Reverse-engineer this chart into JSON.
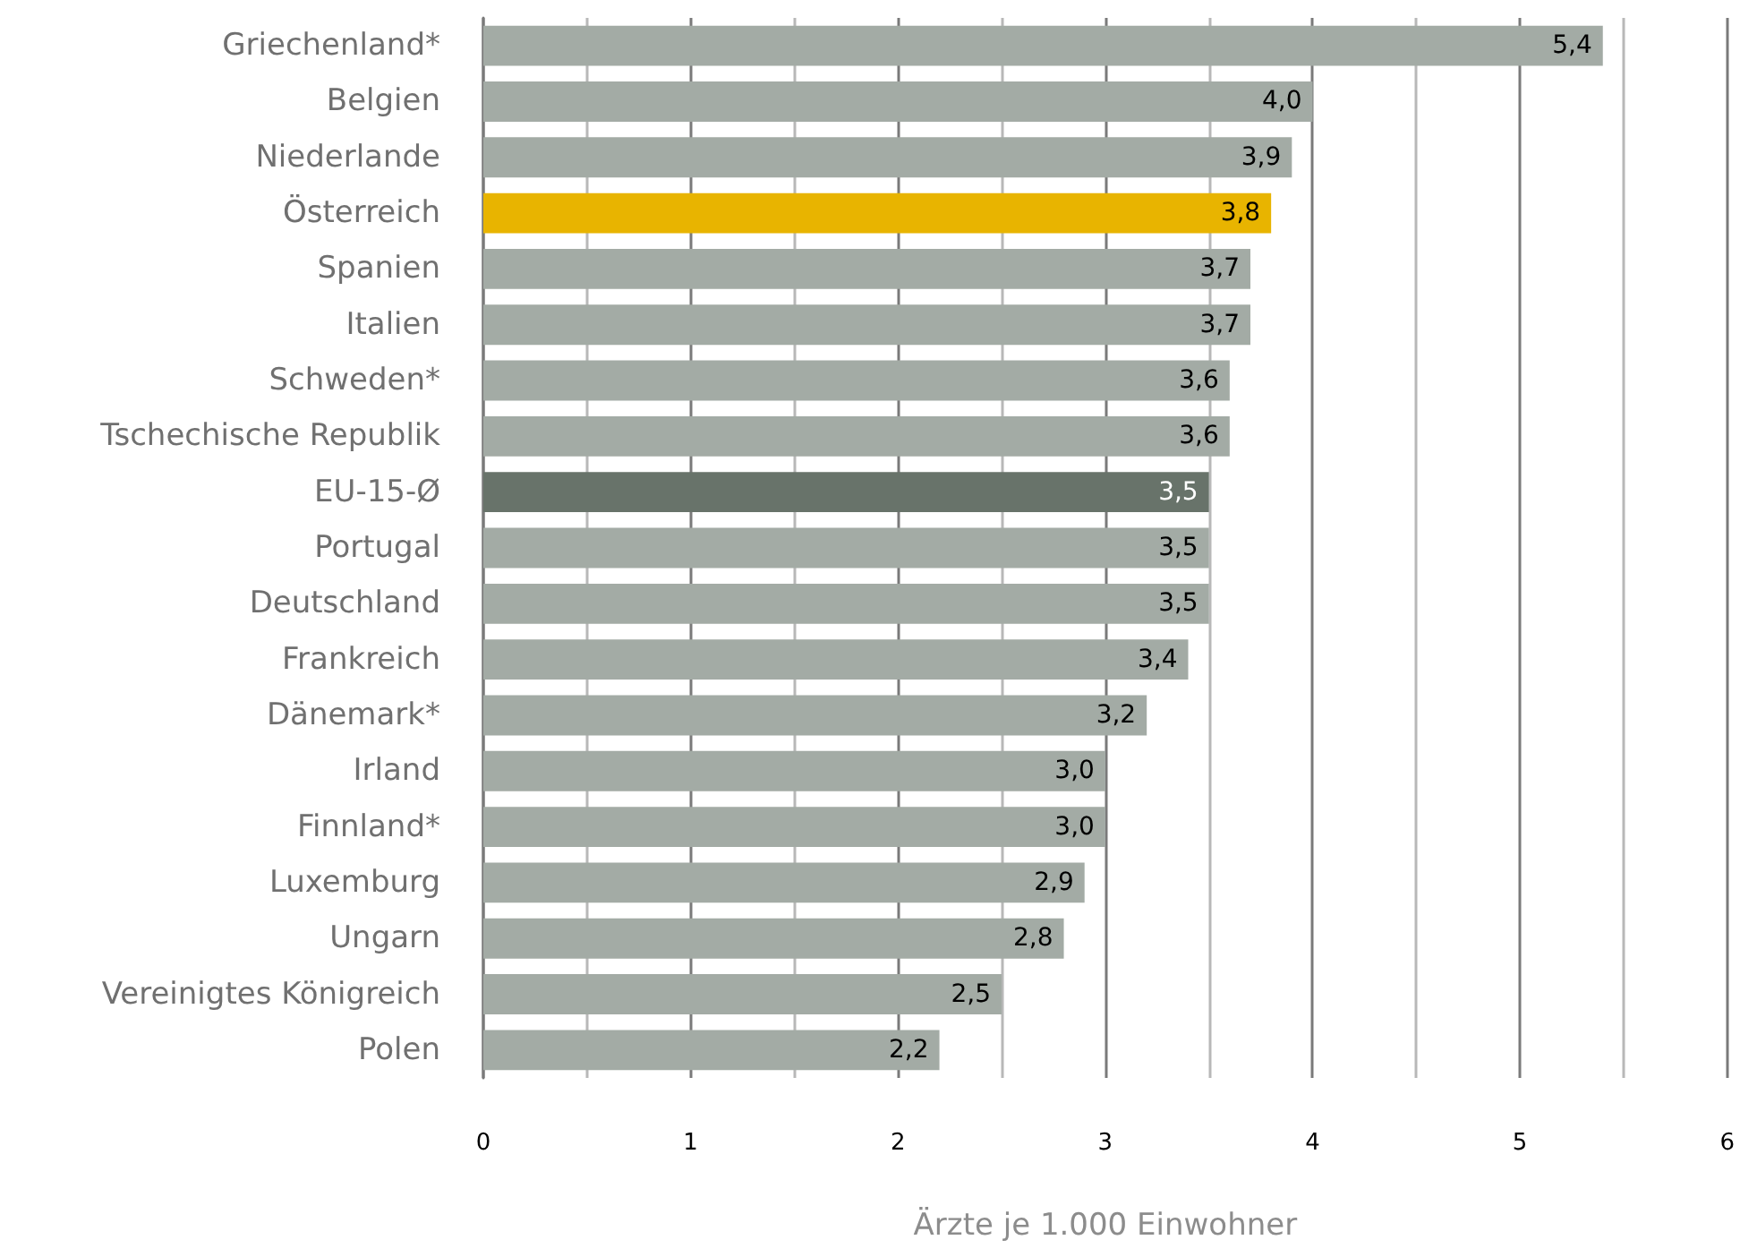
{
  "chart_data": {
    "type": "bar",
    "orientation": "horizontal",
    "xlabel": "Ärzte je 1.000 Einwohner",
    "categories": [
      "Griechenland*",
      "Belgien",
      "Niederlande",
      "Österreich",
      "Spanien",
      "Italien",
      "Schweden*",
      "Tschechische Republik",
      "EU-15-Ø",
      "Portugal",
      "Deutschland",
      "Frankreich",
      "Dänemark*",
      "Irland",
      "Finnland*",
      "Luxemburg",
      "Ungarn",
      "Vereinigtes Königreich",
      "Polen"
    ],
    "values": [
      5.4,
      4.0,
      3.9,
      3.8,
      3.7,
      3.7,
      3.6,
      3.6,
      3.5,
      3.5,
      3.5,
      3.4,
      3.2,
      3.0,
      3.0,
      2.9,
      2.8,
      2.5,
      2.2
    ],
    "value_labels": [
      "5,4",
      "4,0",
      "3,9",
      "3,8",
      "3,7",
      "3,7",
      "3,6",
      "3,6",
      "3,5",
      "3,5",
      "3,5",
      "3,4",
      "3,2",
      "3,0",
      "3,0",
      "2,9",
      "2,8",
      "2,5",
      "2,2"
    ],
    "colors": [
      "#a3aba5",
      "#a3aba5",
      "#a3aba5",
      "#e8b400",
      "#a3aba5",
      "#a3aba5",
      "#a3aba5",
      "#a3aba5",
      "#68736a",
      "#a3aba5",
      "#a3aba5",
      "#a3aba5",
      "#a3aba5",
      "#a3aba5",
      "#a3aba5",
      "#a3aba5",
      "#a3aba5",
      "#a3aba5",
      "#a3aba5"
    ],
    "xlim": [
      0,
      6
    ],
    "xticks": [
      0,
      {
        "value": 0.5,
        "label": null
      },
      1,
      {
        "value": 1.5,
        "label": null
      },
      2,
      {
        "value": 2.5,
        "label": null
      },
      3,
      {
        "value": 3.5,
        "label": null
      },
      4,
      {
        "value": 4.5,
        "label": null
      },
      5,
      {
        "value": 5.5,
        "label": null
      },
      6
    ],
    "grid": "x"
  }
}
